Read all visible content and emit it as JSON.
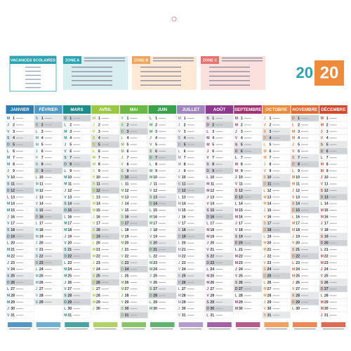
{
  "header": {
    "title": "VACANCES SCOLAIRES",
    "zones": [
      {
        "label": "ZONE A",
        "color": "#2ba3b0",
        "tint": "#d9eef0"
      },
      {
        "label": "ZONE B",
        "color": "#f2a35c",
        "tint": "#fde9d6"
      },
      {
        "label": "ZONE C",
        "color": "#e8736e",
        "tint": "#fbe0de"
      }
    ],
    "year": [
      "20",
      "20"
    ]
  },
  "weekdays": [
    "D",
    "L",
    "M",
    "M",
    "J",
    "V",
    "S"
  ],
  "months": [
    {
      "name": "JANVIER",
      "color": "#2d7db3",
      "days": [
        1,
        2,
        3,
        4,
        5,
        6,
        7,
        8,
        9,
        10,
        11,
        12,
        13,
        14,
        15,
        16,
        17,
        18,
        19,
        20,
        21,
        22,
        23,
        24,
        25,
        26,
        27,
        28,
        29,
        30,
        31
      ]
    },
    {
      "name": "FÉVRIER",
      "color": "#4a9bc9",
      "days": [
        1,
        2,
        3,
        4,
        5,
        6,
        7,
        8,
        9,
        10,
        11,
        12,
        13,
        14,
        15,
        16,
        17,
        18,
        19,
        20,
        21,
        22,
        23,
        24,
        25,
        26,
        27,
        28,
        29
      ]
    },
    {
      "name": "MARS",
      "color": "#1f8c8c",
      "days": [
        1,
        2,
        3,
        4,
        5,
        6,
        7,
        8,
        9,
        10,
        11,
        12,
        13,
        14,
        15,
        16,
        17,
        18,
        19,
        20,
        21,
        22,
        23,
        24,
        25,
        26,
        27,
        28,
        29,
        30,
        31
      ]
    },
    {
      "name": "AVRIL",
      "color": "#9cc841",
      "days": [
        1,
        2,
        3,
        4,
        5,
        6,
        7,
        8,
        9,
        10,
        11,
        12,
        13,
        14,
        15,
        16,
        17,
        18,
        19,
        20,
        21,
        22,
        23,
        24,
        25,
        26,
        27,
        28,
        29,
        30
      ]
    },
    {
      "name": "MAI",
      "color": "#6cb845",
      "days": [
        1,
        2,
        3,
        4,
        5,
        6,
        7,
        8,
        9,
        10,
        11,
        12,
        13,
        14,
        15,
        16,
        17,
        18,
        19,
        20,
        21,
        22,
        23,
        24,
        25,
        26,
        27,
        28,
        29,
        30,
        31
      ]
    },
    {
      "name": "JUIN",
      "color": "#3aa14b",
      "days": [
        1,
        2,
        3,
        4,
        5,
        6,
        7,
        8,
        9,
        10,
        11,
        12,
        13,
        14,
        15,
        16,
        17,
        18,
        19,
        20,
        21,
        22,
        23,
        24,
        25,
        26,
        27,
        28,
        29,
        30
      ]
    },
    {
      "name": "JUILLET",
      "color": "#a184c0",
      "days": [
        1,
        2,
        3,
        4,
        5,
        6,
        7,
        8,
        9,
        10,
        11,
        12,
        13,
        14,
        15,
        16,
        17,
        18,
        19,
        20,
        21,
        22,
        23,
        24,
        25,
        26,
        27,
        28,
        29,
        30,
        31
      ]
    },
    {
      "name": "AOÛT",
      "color": "#8c3a8e",
      "days": [
        1,
        2,
        3,
        4,
        5,
        6,
        7,
        8,
        9,
        10,
        11,
        12,
        13,
        14,
        15,
        16,
        17,
        18,
        19,
        20,
        21,
        22,
        23,
        24,
        25,
        26,
        27,
        28,
        29,
        30,
        31
      ]
    },
    {
      "name": "SEPTEMBRE",
      "color": "#a33270",
      "days": [
        1,
        2,
        3,
        4,
        5,
        6,
        7,
        8,
        9,
        10,
        11,
        12,
        13,
        14,
        15,
        16,
        17,
        18,
        19,
        20,
        21,
        22,
        23,
        24,
        25,
        26,
        27,
        28,
        29,
        30
      ]
    },
    {
      "name": "OCTOBRE",
      "color": "#ee8a3c",
      "days": [
        1,
        2,
        3,
        4,
        5,
        6,
        7,
        8,
        9,
        10,
        11,
        12,
        13,
        14,
        15,
        16,
        17,
        18,
        19,
        20,
        21,
        22,
        23,
        24,
        25,
        26,
        27,
        28,
        29,
        30,
        31
      ]
    },
    {
      "name": "NOVEMBRE",
      "color": "#e56a2c",
      "days": [
        1,
        2,
        3,
        4,
        5,
        6,
        7,
        8,
        9,
        10,
        11,
        12,
        13,
        14,
        15,
        16,
        17,
        18,
        19,
        20,
        21,
        22,
        23,
        24,
        25,
        26,
        27,
        28,
        29,
        30
      ]
    },
    {
      "name": "DÉCEMBRE",
      "color": "#d3472c",
      "days": [
        1,
        2,
        3,
        4,
        5,
        6,
        7,
        8,
        9,
        10,
        11,
        12,
        13,
        14,
        15,
        16,
        17,
        18,
        19,
        20,
        21,
        22,
        23,
        24,
        25,
        26,
        27,
        28,
        29,
        30,
        31
      ]
    }
  ]
}
